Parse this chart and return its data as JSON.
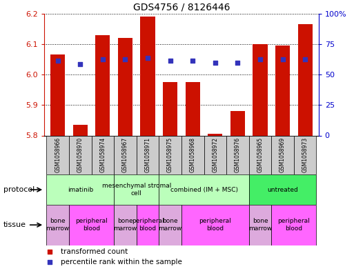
{
  "title": "GDS4756 / 8126446",
  "samples": [
    "GSM1058966",
    "GSM1058970",
    "GSM1058974",
    "GSM1058967",
    "GSM1058971",
    "GSM1058975",
    "GSM1058968",
    "GSM1058972",
    "GSM1058976",
    "GSM1058965",
    "GSM1058969",
    "GSM1058973"
  ],
  "bar_values": [
    6.065,
    5.835,
    6.13,
    6.12,
    6.19,
    5.975,
    5.975,
    5.805,
    5.88,
    6.1,
    6.095,
    6.165
  ],
  "blue_values": [
    6.045,
    6.035,
    6.05,
    6.05,
    6.055,
    6.045,
    6.045,
    6.038,
    6.038,
    6.05,
    6.05,
    6.05
  ],
  "ylim_left": [
    5.8,
    6.2
  ],
  "ylim_right": [
    0,
    100
  ],
  "yticks_left": [
    5.8,
    5.9,
    6.0,
    6.1,
    6.2
  ],
  "yticks_right": [
    0,
    25,
    50,
    75,
    100
  ],
  "ytick_labels_right": [
    "0",
    "25",
    "50",
    "75",
    "100%"
  ],
  "bar_color": "#cc1100",
  "blue_color": "#3333bb",
  "protocols": [
    {
      "label": "imatinib",
      "start": 0,
      "end": 3
    },
    {
      "label": "mesenchymal stromal\ncell",
      "start": 3,
      "end": 5
    },
    {
      "label": "combined (IM + MSC)",
      "start": 5,
      "end": 9
    },
    {
      "label": "untreated",
      "start": 9,
      "end": 12
    }
  ],
  "protocol_colors": [
    "#bbffbb",
    "#bbffbb",
    "#bbffbb",
    "#44ee66"
  ],
  "tissues": [
    {
      "label": "bone\nmarrow",
      "start": 0,
      "end": 1
    },
    {
      "label": "peripheral\nblood",
      "start": 1,
      "end": 3
    },
    {
      "label": "bone\nmarrow",
      "start": 3,
      "end": 4
    },
    {
      "label": "peripheral\nblood",
      "start": 4,
      "end": 5
    },
    {
      "label": "bone\nmarrow",
      "start": 5,
      "end": 6
    },
    {
      "label": "peripheral\nblood",
      "start": 6,
      "end": 9
    },
    {
      "label": "bone\nmarrow",
      "start": 9,
      "end": 10
    },
    {
      "label": "peripheral\nblood",
      "start": 10,
      "end": 12
    }
  ],
  "tissue_color_marrow": "#ddaadd",
  "tissue_color_blood": "#ff66ff",
  "legend_items": [
    {
      "label": "transformed count",
      "color": "#cc1100"
    },
    {
      "label": "percentile rank within the sample",
      "color": "#3333bb"
    }
  ],
  "protocol_label": "protocol",
  "tissue_label": "tissue",
  "left_tick_color": "#cc1100",
  "right_tick_color": "#0000cc",
  "sample_bg_color": "#cccccc",
  "grid_color": "#000000",
  "title_fontsize": 10
}
